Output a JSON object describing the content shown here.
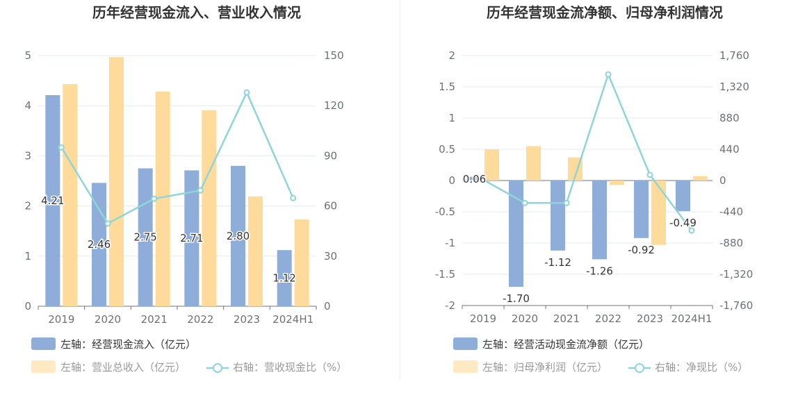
{
  "chart_data": [
    {
      "type": "bar",
      "title": "历年经营现金流入、营业收入情况",
      "categories": [
        "2019",
        "2020",
        "2021",
        "2022",
        "2023",
        "2024H1"
      ],
      "y_left": {
        "ticks": [
          "0",
          "1",
          "2",
          "3",
          "4",
          "5"
        ],
        "ylim": [
          0,
          5
        ]
      },
      "y_right": {
        "ticks": [
          "0",
          "30",
          "60",
          "90",
          "120",
          "150"
        ],
        "ylim": [
          0,
          150
        ]
      },
      "series": [
        {
          "name": "左轴：经营现金流入（亿元）",
          "kind": "bar",
          "axis": "left",
          "color": "#8eadd9",
          "values": [
            4.21,
            2.46,
            2.75,
            2.71,
            2.8,
            1.12
          ],
          "labels": [
            "4.21",
            "2.46",
            "2.75",
            "2.71",
            "2.80",
            "1.12"
          ]
        },
        {
          "name": "左轴：营业总收入（亿元）",
          "kind": "bar",
          "axis": "left",
          "color": "#fedb9b",
          "values": [
            4.43,
            4.97,
            4.28,
            3.91,
            2.19,
            1.73
          ]
        },
        {
          "name": "右轴：营收现金比（%）",
          "kind": "line",
          "axis": "right",
          "color": "#8dd5d8",
          "values": [
            95,
            49.5,
            64.3,
            69.3,
            127.9,
            64.7
          ]
        }
      ],
      "grid": true,
      "legend": "bottom"
    },
    {
      "type": "bar",
      "title": "历年经营现金流净额、归母净利润情况",
      "categories": [
        "2019",
        "2020",
        "2021",
        "2022",
        "2023",
        "2024H1"
      ],
      "y_left": {
        "ticks": [
          "-2",
          "-1.5",
          "-1",
          "-0.5",
          "0",
          "0.5",
          "1",
          "1.5",
          "2"
        ],
        "ylim": [
          -2,
          2
        ]
      },
      "y_right": {
        "ticks": [
          "-1,760",
          "-1,320",
          "-880",
          "-440",
          "0",
          "440",
          "880",
          "1,320",
          "1,760"
        ],
        "ylim": [
          -1760,
          1760
        ]
      },
      "series": [
        {
          "name": "左轴：经营活动现金流净额（亿元）",
          "kind": "bar",
          "axis": "left",
          "color": "#8eadd9",
          "values": [
            0.06,
            -1.7,
            -1.12,
            -1.26,
            -0.92,
            -0.49
          ],
          "labels": [
            "0.06",
            "-1.70",
            "-1.12",
            "-1.26",
            "-0.92",
            "-0.49"
          ]
        },
        {
          "name": "左轴：归母净利润（亿元）",
          "kind": "bar",
          "axis": "left",
          "color": "#fedb9b",
          "values": [
            0.5,
            0.55,
            0.37,
            -0.07,
            -1.03,
            0.07
          ]
        },
        {
          "name": "右轴：净现比（%）",
          "kind": "line",
          "axis": "right",
          "color": "#8dd5d8",
          "values": [
            12,
            -315,
            -315,
            1495,
            80,
            -705
          ]
        }
      ],
      "grid": true,
      "legend": "bottom"
    }
  ]
}
